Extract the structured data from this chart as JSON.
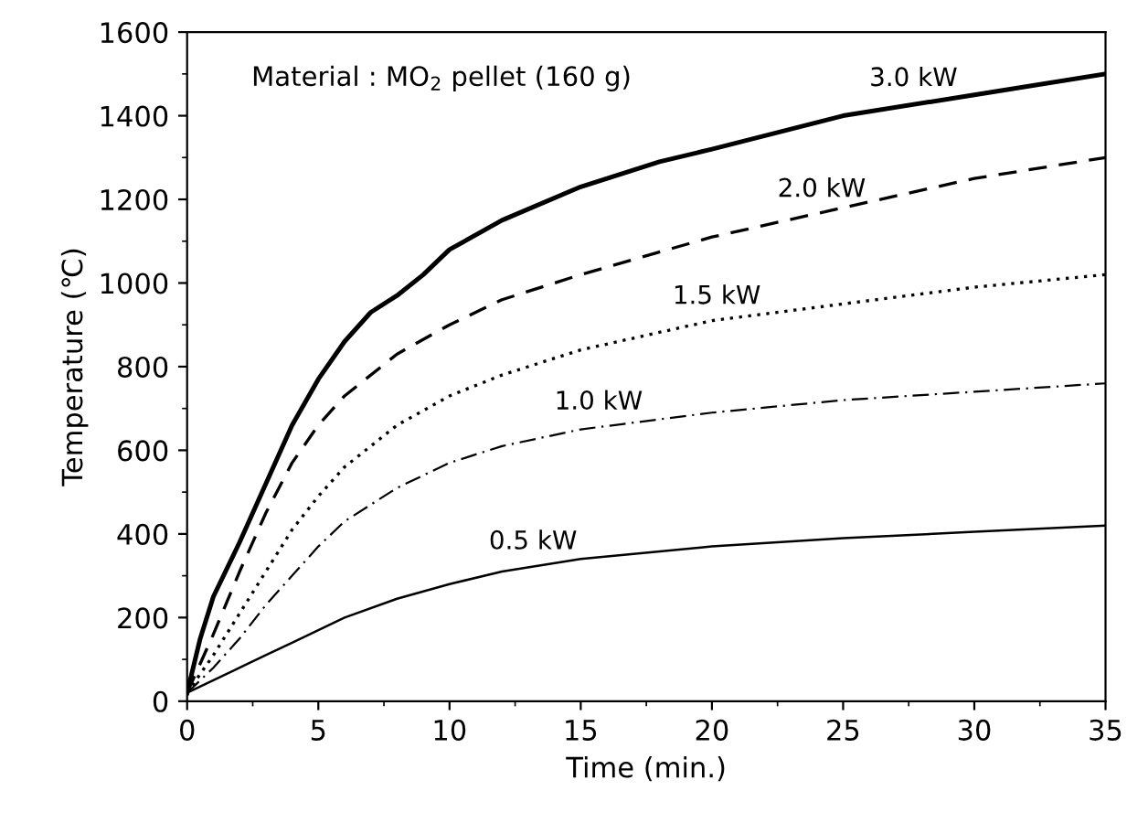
{
  "chart_data": {
    "type": "line",
    "xlabel": "Time (min.)",
    "ylabel": "Temperature (℃)",
    "annotations": [
      "Material : MO$_{2}$ pellet (160 g)"
    ],
    "xlim": [
      0,
      35
    ],
    "xticks": [
      0,
      5,
      10,
      15,
      20,
      25,
      30,
      35
    ],
    "ylim": [
      0,
      1600
    ],
    "yticks": [
      0,
      200,
      400,
      600,
      800,
      1000,
      1200,
      1400,
      1600
    ],
    "grid": false,
    "legend": false,
    "marker": "none",
    "series": [
      {
        "name": "3.0 kW",
        "color": "#000000",
        "line_style": "solid",
        "x": [
          0,
          0.5,
          1,
          2,
          3,
          4,
          5,
          6,
          7,
          8,
          9,
          10,
          12,
          15,
          18,
          20,
          25,
          30,
          35
        ],
        "values": [
          20,
          150,
          250,
          380,
          520,
          660,
          770,
          860,
          930,
          970,
          1020,
          1080,
          1150,
          1230,
          1290,
          1320,
          1400,
          1450,
          1500
        ]
      },
      {
        "name": "2.0 kW",
        "color": "#000000",
        "line_style": "dashed",
        "x": [
          0,
          1,
          2,
          3,
          4,
          5,
          6,
          8,
          10,
          12,
          15,
          20,
          25,
          30,
          35
        ],
        "values": [
          20,
          160,
          310,
          450,
          570,
          660,
          730,
          830,
          900,
          960,
          1020,
          1110,
          1180,
          1250,
          1300
        ]
      },
      {
        "name": "1.5 kW",
        "color": "#000000",
        "line_style": "dotted",
        "x": [
          0,
          1,
          2,
          3,
          4,
          5,
          6,
          8,
          10,
          12,
          15,
          20,
          25,
          30,
          35
        ],
        "values": [
          20,
          110,
          210,
          310,
          410,
          490,
          560,
          660,
          730,
          780,
          840,
          910,
          950,
          990,
          1020
        ]
      },
      {
        "name": "1.0 kW",
        "color": "#000000",
        "line_style": "dashdot",
        "x": [
          0,
          1,
          2,
          3,
          4,
          5,
          6,
          8,
          10,
          12,
          15,
          20,
          25,
          30,
          35
        ],
        "values": [
          20,
          80,
          150,
          230,
          300,
          370,
          430,
          510,
          570,
          610,
          650,
          690,
          720,
          740,
          760
        ]
      },
      {
        "name": "0.5 kW",
        "color": "#000000",
        "line_style": "solid",
        "x": [
          0,
          1,
          2,
          3,
          4,
          5,
          6,
          8,
          10,
          12,
          15,
          20,
          25,
          30,
          35
        ],
        "values": [
          20,
          50,
          80,
          110,
          140,
          170,
          200,
          245,
          280,
          310,
          340,
          370,
          390,
          405,
          420
        ]
      }
    ]
  }
}
